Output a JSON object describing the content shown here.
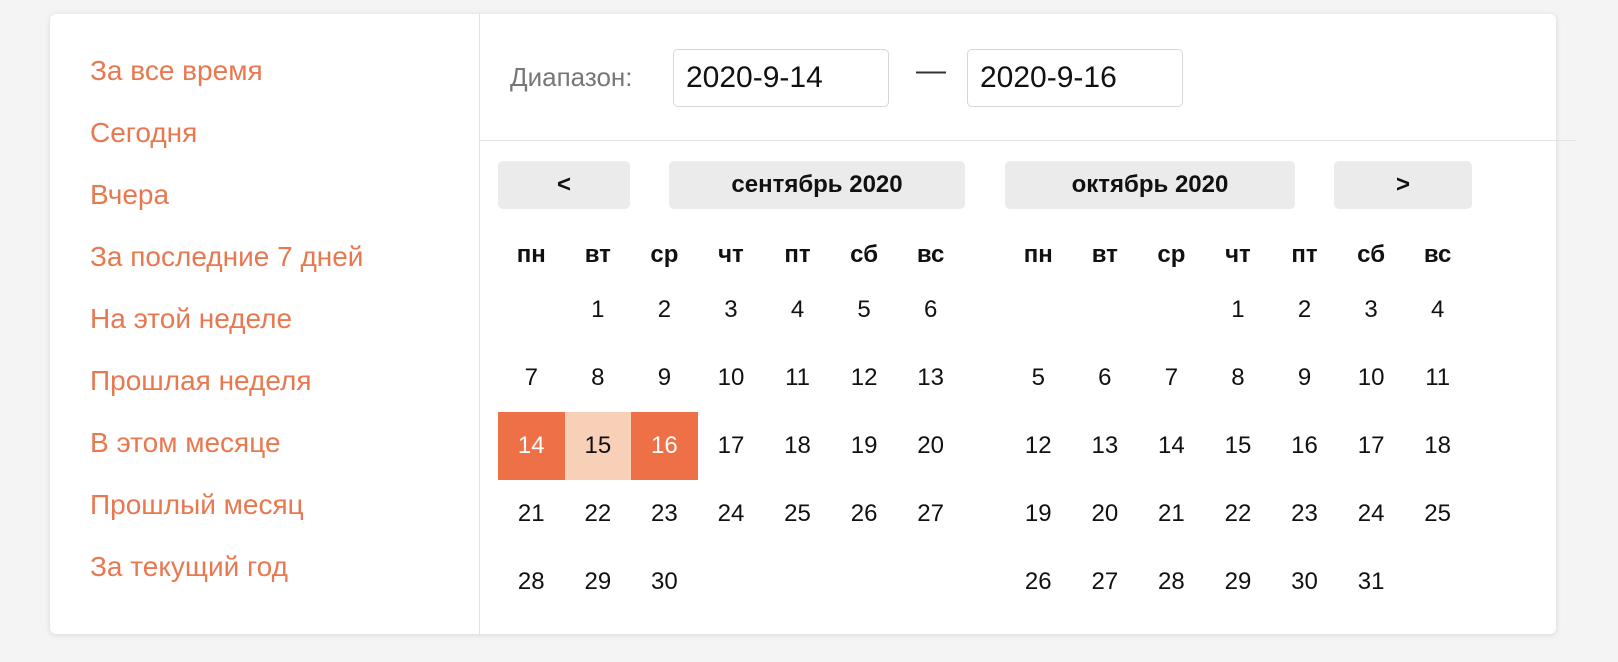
{
  "shortcuts": [
    "За все время",
    "Сегодня",
    "Вчера",
    "За последние 7 дней",
    "На этой неделе",
    "Прошлая неделя",
    "В этом месяце",
    "Прошлый месяц",
    "За текущий год"
  ],
  "range": {
    "label": "Диапазон:",
    "start": "2020-9-14",
    "separator": "—",
    "end": "2020-9-16"
  },
  "nav": {
    "prev": "<",
    "next": ">"
  },
  "weekdays": [
    "пн",
    "вт",
    "ср",
    "чт",
    "пт",
    "сб",
    "вс"
  ],
  "months": [
    {
      "title": "сентябрь 2020",
      "weeks": [
        [
          "",
          "1",
          "2",
          "3",
          "4",
          "5",
          "6"
        ],
        [
          "7",
          "8",
          "9",
          "10",
          "11",
          "12",
          "13"
        ],
        [
          "14",
          "15",
          "16",
          "17",
          "18",
          "19",
          "20"
        ],
        [
          "21",
          "22",
          "23",
          "24",
          "25",
          "26",
          "27"
        ],
        [
          "28",
          "29",
          "30",
          "",
          "",
          "",
          ""
        ]
      ]
    },
    {
      "title": "октябрь 2020",
      "weeks": [
        [
          "",
          "",
          "",
          "1",
          "2",
          "3",
          "4"
        ],
        [
          "5",
          "6",
          "7",
          "8",
          "9",
          "10",
          "11"
        ],
        [
          "12",
          "13",
          "14",
          "15",
          "16",
          "17",
          "18"
        ],
        [
          "19",
          "20",
          "21",
          "22",
          "23",
          "24",
          "25"
        ],
        [
          "26",
          "27",
          "28",
          "29",
          "30",
          "31",
          ""
        ]
      ]
    }
  ],
  "selection": {
    "month": 0,
    "start_day": "14",
    "end_day": "16",
    "in_range_days": [
      "15"
    ]
  },
  "colors": {
    "accent": "#ee7047",
    "accent_light": "#f8d0b7",
    "shortcut_text": "#e8784f"
  }
}
